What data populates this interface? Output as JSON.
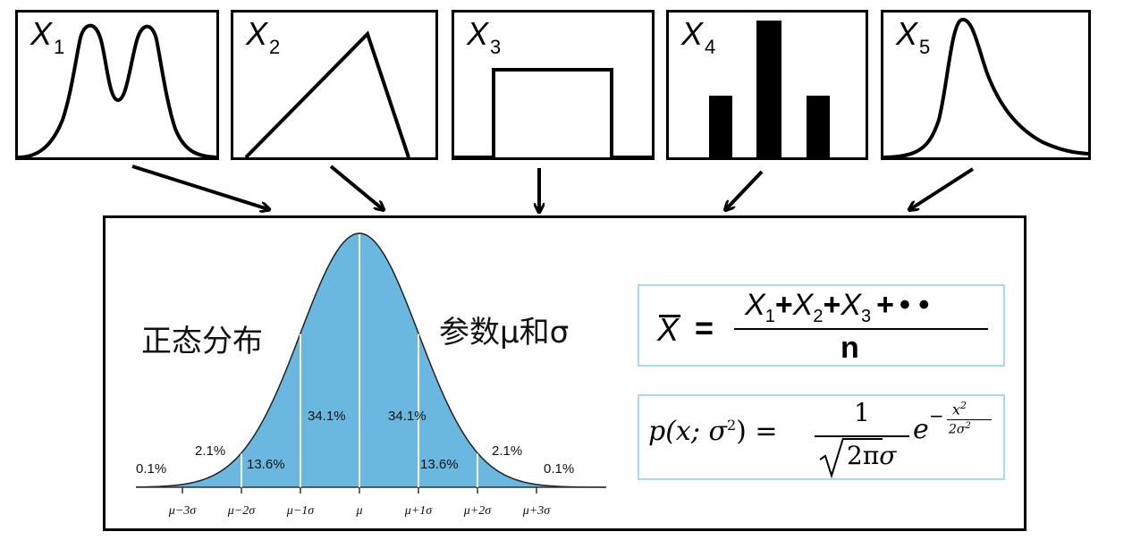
{
  "panels": [
    {
      "label": "X",
      "sub": "1"
    },
    {
      "label": "X",
      "sub": "2"
    },
    {
      "label": "X",
      "sub": "3"
    },
    {
      "label": "X",
      "sub": "4"
    },
    {
      "label": "X",
      "sub": "5"
    }
  ],
  "normal": {
    "title": "正态分布",
    "params": "参数μ和σ",
    "fill_color": "#6ab7df",
    "percent_labels": [
      "0.1%",
      "2.1%",
      "13.6%",
      "34.1%",
      "34.1%",
      "13.6%",
      "2.1%",
      "0.1%"
    ],
    "ticks": [
      "μ−3σ",
      "μ−2σ",
      "μ−1σ",
      "μ",
      "μ+1σ",
      "μ+2σ",
      "μ+3σ"
    ]
  },
  "formula_mean": {
    "lhs": "X",
    "eq": "=",
    "numerator_terms": [
      {
        "var": "X",
        "sub": "1"
      },
      {
        "var": "X",
        "sub": "2"
      },
      {
        "var": "X",
        "sub": "3"
      }
    ],
    "plus": "+",
    "dots": "• •",
    "denominator": "n"
  },
  "formula_pdf": {
    "lhs": "p(x; σ",
    "lhs_sup": "2",
    "lhs_close": ") =",
    "num": "1",
    "den_rad": "2π",
    "den_sigma": "σ",
    "base": "e",
    "exp_sign": "−",
    "exp_num": "x",
    "exp_num_sup": "2",
    "exp_den": "2σ",
    "exp_den_sup": "2"
  }
}
